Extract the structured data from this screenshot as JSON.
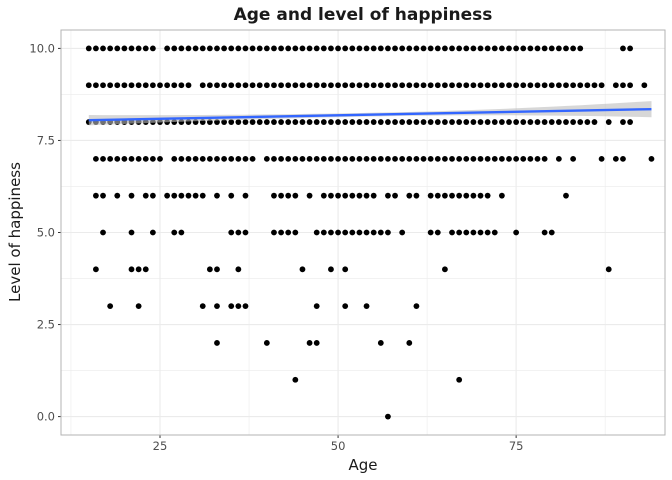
{
  "chart_data": {
    "type": "scatter",
    "title": "Age and level of happiness",
    "xlabel": "Age",
    "ylabel": "Level of happiness",
    "xlim": [
      11.1,
      95.9
    ],
    "ylim": [
      -0.5,
      10.5
    ],
    "x_ticks": [
      25,
      50,
      75
    ],
    "x_tick_labels": [
      "25",
      "50",
      "75"
    ],
    "y_ticks": [
      0,
      2.5,
      5,
      7.5,
      10
    ],
    "y_tick_labels": [
      "0.0",
      "2.5",
      "5.0",
      "7.5",
      "10.0"
    ],
    "grid": true,
    "legend": "none",
    "colors": {
      "points": "#000000",
      "trend": "#3366ff",
      "band": "#bdbdbd",
      "grid": "#ebebeb",
      "panel_border": "#b3b3b3"
    },
    "series": [
      {
        "level": 10,
        "x": [
          15,
          16,
          17,
          18,
          19,
          20,
          21,
          22,
          23,
          24,
          26,
          27,
          28,
          29,
          30,
          31,
          32,
          33,
          34,
          35,
          36,
          37,
          38,
          39,
          40,
          41,
          42,
          43,
          44,
          45,
          46,
          47,
          48,
          49,
          50,
          51,
          52,
          53,
          54,
          55,
          56,
          57,
          58,
          59,
          60,
          61,
          62,
          63,
          64,
          65,
          66,
          67,
          68,
          69,
          70,
          71,
          72,
          73,
          74,
          75,
          76,
          77,
          78,
          79,
          80,
          81,
          82,
          83,
          84,
          90,
          91
        ]
      },
      {
        "level": 9,
        "x": [
          15,
          16,
          17,
          18,
          19,
          20,
          21,
          22,
          23,
          24,
          25,
          26,
          27,
          28,
          29,
          31,
          32,
          33,
          34,
          35,
          36,
          37,
          38,
          39,
          40,
          41,
          42,
          43,
          44,
          45,
          46,
          47,
          48,
          49,
          50,
          51,
          52,
          53,
          54,
          55,
          56,
          57,
          58,
          59,
          60,
          61,
          62,
          63,
          64,
          65,
          66,
          67,
          68,
          69,
          70,
          71,
          72,
          73,
          74,
          75,
          76,
          77,
          78,
          79,
          80,
          81,
          82,
          83,
          84,
          85,
          86,
          87,
          89,
          90,
          91,
          93
        ]
      },
      {
        "level": 8,
        "x": [
          15,
          16,
          17,
          18,
          19,
          20,
          21,
          22,
          23,
          24,
          25,
          26,
          27,
          28,
          29,
          30,
          31,
          32,
          33,
          34,
          35,
          36,
          37,
          38,
          39,
          40,
          41,
          42,
          43,
          44,
          45,
          46,
          47,
          48,
          49,
          50,
          51,
          52,
          53,
          54,
          55,
          56,
          57,
          58,
          59,
          60,
          61,
          62,
          63,
          64,
          65,
          66,
          67,
          68,
          69,
          70,
          71,
          72,
          73,
          74,
          75,
          76,
          77,
          78,
          79,
          80,
          81,
          82,
          83,
          84,
          85,
          86,
          88,
          90,
          91
        ]
      },
      {
        "level": 7,
        "x": [
          16,
          17,
          18,
          19,
          20,
          21,
          22,
          23,
          24,
          25,
          27,
          28,
          29,
          30,
          31,
          32,
          33,
          34,
          35,
          36,
          37,
          38,
          40,
          41,
          42,
          43,
          44,
          45,
          46,
          47,
          48,
          49,
          50,
          51,
          52,
          53,
          54,
          55,
          56,
          57,
          58,
          59,
          60,
          61,
          62,
          63,
          64,
          65,
          66,
          67,
          68,
          69,
          70,
          71,
          72,
          73,
          74,
          75,
          76,
          77,
          78,
          79,
          81,
          83,
          87,
          89,
          90,
          94
        ]
      },
      {
        "level": 6,
        "x": [
          16,
          17,
          19,
          21,
          23,
          24,
          26,
          27,
          28,
          29,
          30,
          31,
          33,
          35,
          37,
          41,
          42,
          43,
          44,
          46,
          48,
          49,
          50,
          51,
          52,
          53,
          54,
          55,
          57,
          58,
          60,
          61,
          63,
          64,
          65,
          66,
          67,
          68,
          69,
          70,
          71,
          73,
          82
        ]
      },
      {
        "level": 5,
        "x": [
          17,
          21,
          24,
          27,
          28,
          35,
          36,
          37,
          41,
          42,
          43,
          44,
          47,
          48,
          49,
          50,
          51,
          52,
          53,
          54,
          55,
          56,
          57,
          59,
          63,
          64,
          66,
          67,
          68,
          69,
          70,
          71,
          72,
          75,
          79,
          80
        ]
      },
      {
        "level": 4,
        "x": [
          16,
          21,
          22,
          23,
          32,
          33,
          36,
          45,
          49,
          51,
          65,
          88
        ]
      },
      {
        "level": 3,
        "x": [
          18,
          22,
          31,
          33,
          35,
          36,
          37,
          47,
          51,
          54,
          61
        ]
      },
      {
        "level": 2,
        "x": [
          33,
          40,
          46,
          47,
          56,
          60
        ]
      },
      {
        "level": 1,
        "x": [
          44,
          67
        ]
      },
      {
        "level": 0,
        "x": [
          57
        ]
      }
    ],
    "trend": {
      "x": [
        15,
        94
      ],
      "y": [
        8.05,
        8.35
      ],
      "band_halfwidth_ends": [
        0.14,
        0.22
      ],
      "band_halfwidth_mid": 0.05
    }
  }
}
